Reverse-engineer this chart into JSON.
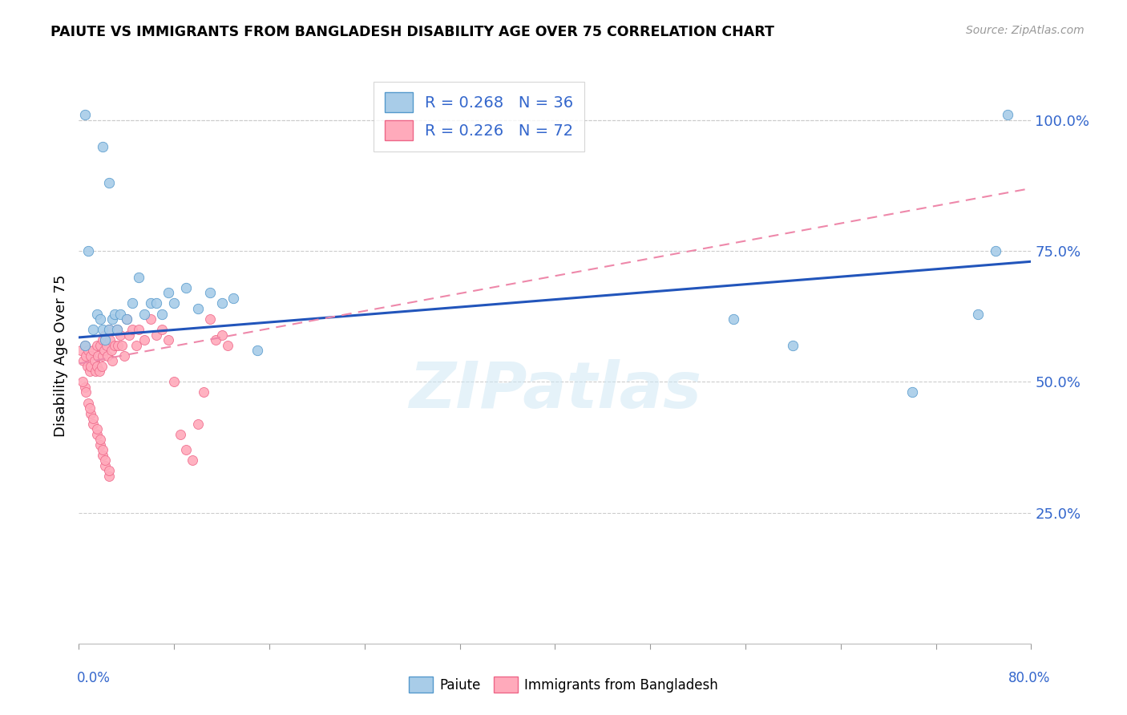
{
  "title": "PAIUTE VS IMMIGRANTS FROM BANGLADESH DISABILITY AGE OVER 75 CORRELATION CHART",
  "source": "Source: ZipAtlas.com",
  "ylabel": "Disability Age Over 75",
  "paiute_color_fill": "#a8cce8",
  "paiute_color_edge": "#5599cc",
  "bangladesh_color_fill": "#ffaabb",
  "bangladesh_color_edge": "#ee6688",
  "trend_blue": "#2255bb",
  "trend_pink": "#ee88aa",
  "blue_label": "#3366cc",
  "xlim": [
    0.0,
    0.8
  ],
  "ylim": [
    0.0,
    1.1
  ],
  "ytick_vals": [
    0.25,
    0.5,
    0.75,
    1.0
  ],
  "ytick_labels": [
    "25.0%",
    "50.0%",
    "75.0%",
    "100.0%"
  ],
  "paiute_x": [
    0.005,
    0.008,
    0.012,
    0.015,
    0.018,
    0.02,
    0.022,
    0.025,
    0.028,
    0.03,
    0.032,
    0.035,
    0.04,
    0.045,
    0.05,
    0.055,
    0.06,
    0.065,
    0.07,
    0.075,
    0.08,
    0.09,
    0.1,
    0.11,
    0.12,
    0.13,
    0.15,
    0.005,
    0.02,
    0.025,
    0.55,
    0.6,
    0.7,
    0.755,
    0.77,
    0.78
  ],
  "paiute_y": [
    0.57,
    0.75,
    0.6,
    0.63,
    0.62,
    0.6,
    0.58,
    0.6,
    0.62,
    0.63,
    0.6,
    0.63,
    0.62,
    0.65,
    0.7,
    0.63,
    0.65,
    0.65,
    0.63,
    0.67,
    0.65,
    0.68,
    0.64,
    0.67,
    0.65,
    0.66,
    0.56,
    1.01,
    0.95,
    0.88,
    0.62,
    0.57,
    0.48,
    0.63,
    0.75,
    1.01
  ],
  "bangladesh_x": [
    0.002,
    0.004,
    0.005,
    0.006,
    0.007,
    0.008,
    0.009,
    0.01,
    0.01,
    0.012,
    0.013,
    0.014,
    0.015,
    0.015,
    0.016,
    0.017,
    0.018,
    0.019,
    0.02,
    0.02,
    0.021,
    0.022,
    0.023,
    0.024,
    0.025,
    0.026,
    0.027,
    0.028,
    0.03,
    0.032,
    0.033,
    0.035,
    0.036,
    0.038,
    0.04,
    0.042,
    0.045,
    0.048,
    0.05,
    0.055,
    0.06,
    0.065,
    0.07,
    0.075,
    0.08,
    0.085,
    0.09,
    0.095,
    0.1,
    0.105,
    0.11,
    0.115,
    0.12,
    0.125,
    0.005,
    0.008,
    0.01,
    0.012,
    0.015,
    0.018,
    0.02,
    0.022,
    0.025,
    0.003,
    0.006,
    0.009,
    0.012,
    0.015,
    0.018,
    0.02,
    0.022,
    0.025
  ],
  "bangladesh_y": [
    0.56,
    0.54,
    0.57,
    0.55,
    0.53,
    0.56,
    0.52,
    0.55,
    0.53,
    0.56,
    0.54,
    0.52,
    0.57,
    0.53,
    0.55,
    0.52,
    0.57,
    0.53,
    0.58,
    0.55,
    0.56,
    0.59,
    0.57,
    0.55,
    0.6,
    0.58,
    0.56,
    0.54,
    0.57,
    0.6,
    0.57,
    0.59,
    0.57,
    0.55,
    0.62,
    0.59,
    0.6,
    0.57,
    0.6,
    0.58,
    0.62,
    0.59,
    0.6,
    0.58,
    0.5,
    0.4,
    0.37,
    0.35,
    0.42,
    0.48,
    0.62,
    0.58,
    0.59,
    0.57,
    0.49,
    0.46,
    0.44,
    0.42,
    0.4,
    0.38,
    0.36,
    0.34,
    0.32,
    0.5,
    0.48,
    0.45,
    0.43,
    0.41,
    0.39,
    0.37,
    0.35,
    0.33
  ]
}
